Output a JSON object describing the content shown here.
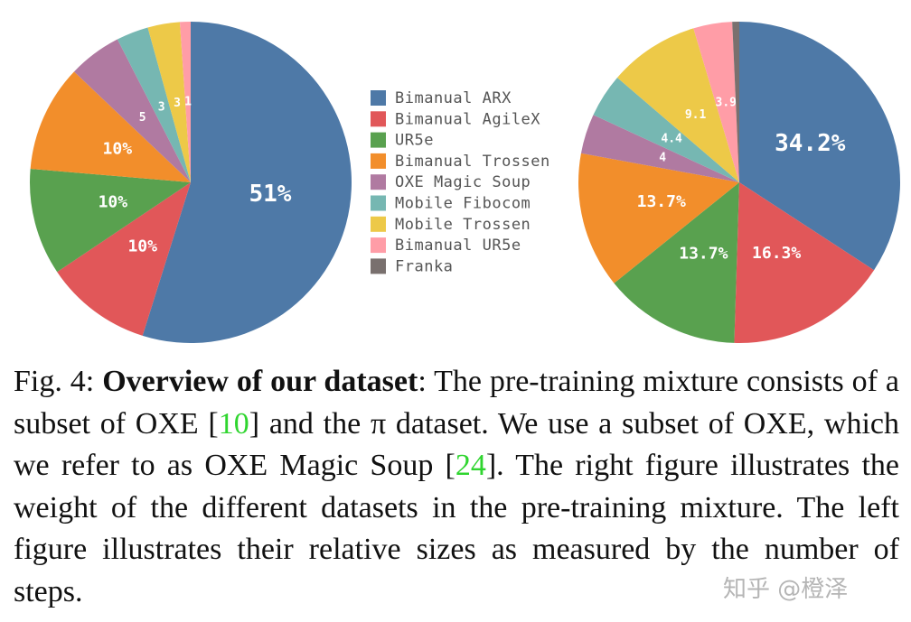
{
  "chart_data": {
    "type": "pie",
    "categories": [
      "Bimanual ARX",
      "Bimanual AgileX",
      "UR5e",
      "Bimanual Trossen",
      "OXE Magic Soup",
      "Mobile Fibocom",
      "Mobile Trossen",
      "Bimanual UR5e",
      "Franka"
    ],
    "colors": [
      "#4e79a7",
      "#e15759",
      "#59a14f",
      "#f28e2b",
      "#b07aa1",
      "#76b7b2",
      "#edc948",
      "#ff9da7",
      "#79706e"
    ],
    "pies": [
      {
        "values": [
          51,
          10,
          10,
          10,
          5,
          3,
          3,
          1,
          0
        ],
        "value_labels": [
          "51%",
          "10%",
          "10%",
          "10%",
          "5",
          "3",
          "3",
          "1",
          null
        ]
      },
      {
        "values": [
          34.2,
          16.3,
          13.7,
          13.7,
          4,
          4.4,
          9.1,
          3.9,
          0.7
        ],
        "value_labels": [
          "34.2%",
          "16.3%",
          "13.7%",
          "13.7%",
          "4",
          "4.4",
          "9.1",
          "3.9",
          null
        ]
      }
    ]
  },
  "caption": {
    "label": "Fig. 4: ",
    "bold": "Overview of our dataset",
    "text_1": ": The pre-training mixture consists of a subset of OXE [",
    "ref_1": "10",
    "text_2": "] and the π dataset. We use a subset of OXE, which we refer to as OXE Magic Soup [",
    "ref_2": "24",
    "text_3": "]. The right figure illustrates the weight of the different datasets in the pre-training mixture. The left figure illustrates their relative sizes as measured by the number of steps."
  },
  "watermark": "知乎 @橙泽"
}
